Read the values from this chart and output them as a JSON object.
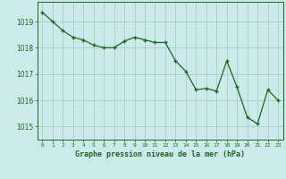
{
  "x": [
    0,
    1,
    2,
    3,
    4,
    5,
    6,
    7,
    8,
    9,
    10,
    11,
    12,
    13,
    14,
    15,
    16,
    17,
    18,
    19,
    20,
    21,
    22,
    23
  ],
  "y": [
    1019.35,
    1019.0,
    1018.65,
    1018.4,
    1018.3,
    1018.1,
    1018.0,
    1018.0,
    1018.25,
    1018.4,
    1018.3,
    1018.2,
    1018.2,
    1017.5,
    1017.1,
    1016.4,
    1016.45,
    1016.35,
    1017.5,
    1016.5,
    1015.35,
    1015.1,
    1016.4,
    1016.0
  ],
  "line_color": "#1a6b1a",
  "marker_color": "#1a6b1a",
  "bg_color": "#cceaea",
  "grid_color": "#aacccc",
  "xlabel": "Graphe pression niveau de la mer (hPa)",
  "xlabel_color": "#1a6b1a",
  "ylabel_ticks": [
    1015,
    1016,
    1017,
    1018,
    1019
  ],
  "ylim": [
    1014.5,
    1019.75
  ],
  "xlim": [
    -0.5,
    23.5
  ],
  "xtick_labels": [
    "0",
    "1",
    "2",
    "3",
    "4",
    "5",
    "6",
    "7",
    "8",
    "9",
    "10",
    "11",
    "12",
    "13",
    "14",
    "15",
    "16",
    "17",
    "18",
    "19",
    "20",
    "21",
    "22",
    "23"
  ]
}
